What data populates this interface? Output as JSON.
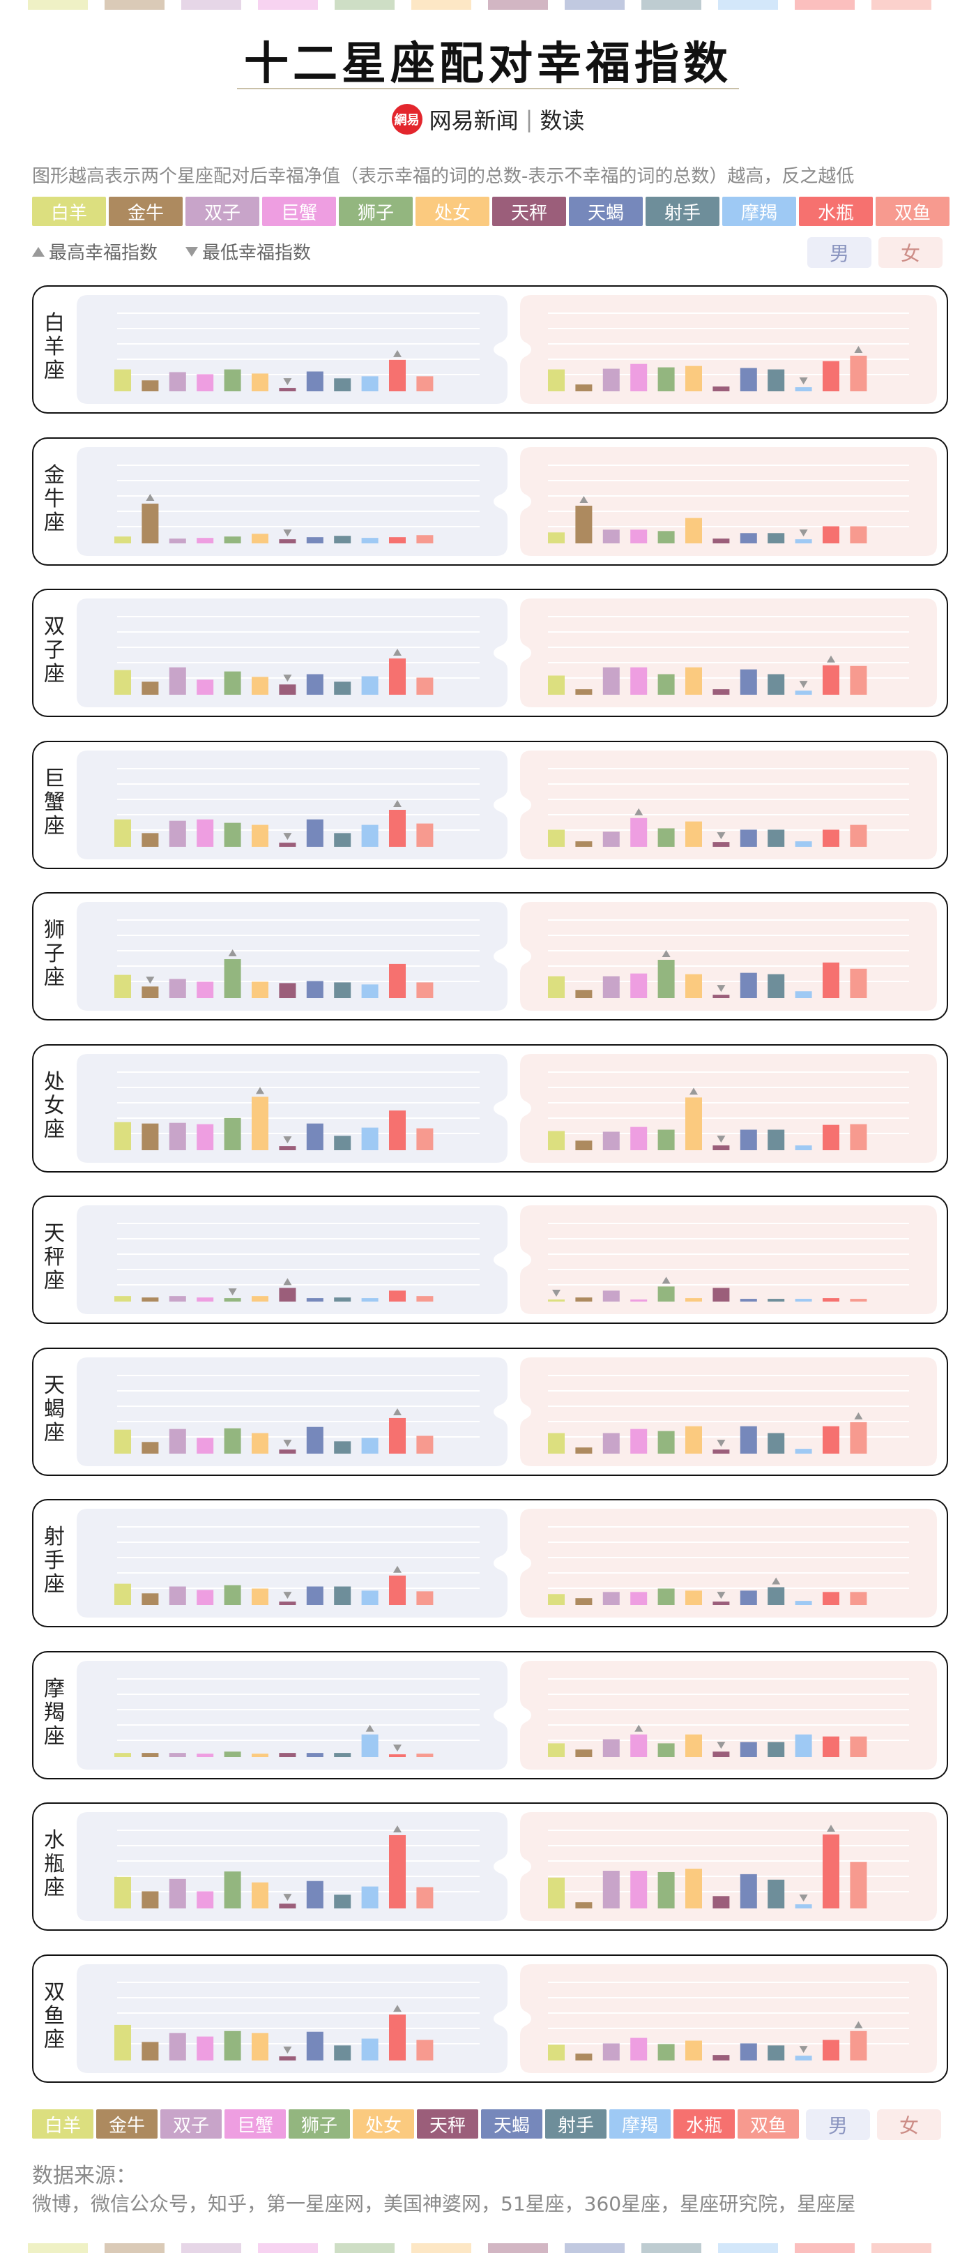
{
  "title": "十二星座配对幸福指数",
  "brand": {
    "logo": "網易",
    "name": "网易新闻",
    "product": "数读"
  },
  "subtitle": "图形越高表示两个星座配对后幸福净值（表示幸福的词的总数-表示不幸福的词的总数）越高，反之越低",
  "legend": {
    "highest": "最高幸福指数",
    "lowest": "最低幸福指数",
    "male": "男",
    "female": "女"
  },
  "colors": {
    "男_panel": "#eef0f7",
    "女_panel": "#fbeeec",
    "marker": "#999999"
  },
  "signs": [
    {
      "name": "白羊",
      "color": "#dcdf7f"
    },
    {
      "name": "金牛",
      "color": "#ad8a5f"
    },
    {
      "name": "双子",
      "color": "#c8a4c9"
    },
    {
      "name": "巨蟹",
      "color": "#ee9ee1"
    },
    {
      "name": "狮子",
      "color": "#93b67f"
    },
    {
      "name": "处女",
      "color": "#fbca7f"
    },
    {
      "name": "天秤",
      "color": "#9b5e7a"
    },
    {
      "name": "天蝎",
      "color": "#7688bb"
    },
    {
      "name": "射手",
      "color": "#6e8e9a"
    },
    {
      "name": "摩羯",
      "color": "#9ec9f4"
    },
    {
      "name": "水瓶",
      "color": "#f6716f"
    },
    {
      "name": "双鱼",
      "color": "#f79a8f"
    }
  ],
  "chart_data": {
    "type": "bar",
    "title": "十二星座配对幸福指数",
    "categories": [
      "白羊",
      "金牛",
      "双子",
      "巨蟹",
      "狮子",
      "处女",
      "天秤",
      "天蝎",
      "射手",
      "摩羯",
      "水瓶",
      "双鱼"
    ],
    "ylim": [
      0,
      110
    ],
    "grid": true,
    "rows": [
      {
        "sign": "白羊座",
        "male": [
          32,
          16,
          28,
          25,
          32,
          26,
          5,
          29,
          19,
          22,
          46,
          22
        ],
        "female": [
          32,
          10,
          33,
          40,
          35,
          37,
          7,
          34,
          32,
          6,
          44,
          52
        ]
      },
      {
        "sign": "金牛座",
        "male": [
          10,
          58,
          7,
          8,
          10,
          14,
          6,
          9,
          11,
          8,
          9,
          12
        ],
        "female": [
          16,
          55,
          20,
          20,
          18,
          37,
          7,
          15,
          15,
          6,
          25,
          25
        ]
      },
      {
        "sign": "双子座",
        "male": [
          36,
          19,
          40,
          22,
          34,
          26,
          15,
          30,
          19,
          27,
          53,
          25
        ],
        "female": [
          28,
          8,
          40,
          40,
          30,
          40,
          8,
          37,
          30,
          6,
          43,
          42
        ]
      },
      {
        "sign": "巨蟹座",
        "male": [
          40,
          20,
          38,
          40,
          35,
          32,
          6,
          40,
          20,
          32,
          54,
          34
        ],
        "female": [
          25,
          8,
          22,
          42,
          27,
          37,
          7,
          25,
          25,
          8,
          25,
          32
        ]
      },
      {
        "sign": "狮子座",
        "male": [
          34,
          17,
          28,
          24,
          57,
          24,
          22,
          25,
          23,
          20,
          50,
          23
        ],
        "female": [
          32,
          12,
          32,
          36,
          56,
          35,
          5,
          37,
          35,
          10,
          52,
          43
        ]
      },
      {
        "sign": "处女座",
        "male": [
          41,
          39,
          40,
          38,
          47,
          78,
          6,
          39,
          21,
          33,
          58,
          32
        ],
        "female": [
          28,
          14,
          27,
          34,
          30,
          77,
          7,
          30,
          30,
          7,
          37,
          38
        ]
      },
      {
        "sign": "天秤座",
        "male": [
          8,
          6,
          8,
          6,
          5,
          8,
          20,
          5,
          6,
          5,
          16,
          8
        ],
        "female": [
          3,
          6,
          16,
          3,
          22,
          5,
          20,
          4,
          4,
          4,
          5,
          4
        ]
      },
      {
        "sign": "天蝎座",
        "male": [
          35,
          17,
          36,
          23,
          37,
          30,
          6,
          39,
          18,
          23,
          52,
          26
        ],
        "female": [
          30,
          9,
          30,
          36,
          33,
          40,
          6,
          40,
          30,
          7,
          40,
          46
        ]
      },
      {
        "sign": "射手座",
        "male": [
          31,
          17,
          27,
          22,
          29,
          24,
          5,
          27,
          27,
          21,
          43,
          20
        ],
        "female": [
          16,
          10,
          19,
          19,
          24,
          21,
          5,
          21,
          26,
          6,
          19,
          19
        ]
      },
      {
        "sign": "摩羯座",
        "male": [
          6,
          6,
          6,
          5,
          8,
          5,
          6,
          6,
          6,
          33,
          4,
          5
        ],
        "female": [
          20,
          11,
          26,
          33,
          20,
          33,
          8,
          22,
          22,
          33,
          30,
          30
        ]
      },
      {
        "sign": "水瓶座",
        "male": [
          46,
          25,
          43,
          25,
          54,
          38,
          7,
          40,
          20,
          32,
          107,
          31
        ],
        "female": [
          45,
          9,
          55,
          55,
          53,
          58,
          18,
          50,
          42,
          6,
          108,
          68
        ]
      },
      {
        "sign": "双鱼座",
        "male": [
          52,
          27,
          40,
          35,
          43,
          40,
          6,
          42,
          22,
          32,
          67,
          30
        ],
        "female": [
          23,
          10,
          25,
          33,
          24,
          29,
          8,
          25,
          22,
          7,
          30,
          43
        ]
      }
    ]
  },
  "source": {
    "label": "数据来源：",
    "text": "微博，微信公众号，知乎，第一星座网，美国神婆网，51星座，360星座，星座研究院，星座屋"
  }
}
